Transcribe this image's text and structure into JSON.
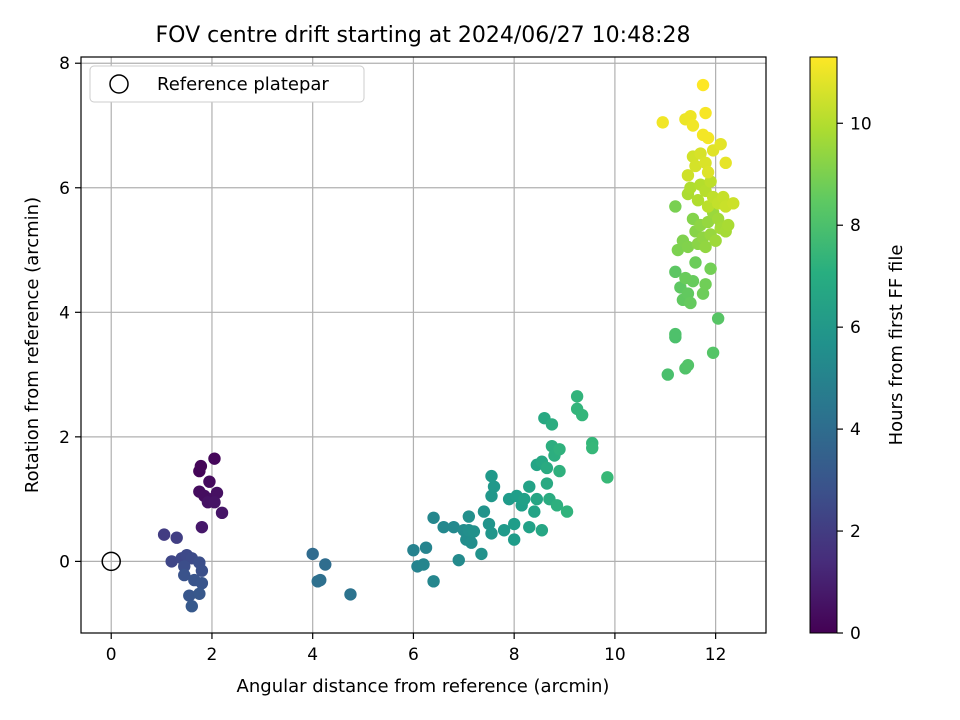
{
  "chart_data": {
    "type": "scatter",
    "title": "FOV centre drift starting at 2024/06/27 10:48:28",
    "xlabel": "Angular distance from reference (arcmin)",
    "ylabel": "Rotation from reference (arcmin)",
    "xlim": [
      -0.6,
      13.0
    ],
    "ylim": [
      -1.15,
      8.1
    ],
    "xticks": [
      0,
      2,
      4,
      6,
      8,
      10,
      12
    ],
    "yticks": [
      0,
      2,
      4,
      6,
      8
    ],
    "grid": true,
    "legend": {
      "position": "top-left",
      "entries": [
        "Reference platepar"
      ]
    },
    "reference_point": {
      "x": 0,
      "y": 0
    },
    "colorbar": {
      "label": "Hours from first FF file",
      "colormap": "viridis",
      "range": [
        0,
        11.3
      ],
      "ticks": [
        0,
        2,
        4,
        6,
        8,
        10
      ]
    },
    "points": [
      {
        "x": 1.75,
        "y": 1.45,
        "t": 0.1
      },
      {
        "x": 1.78,
        "y": 1.53,
        "t": 0.15
      },
      {
        "x": 2.05,
        "y": 1.65,
        "t": 0.2
      },
      {
        "x": 1.95,
        "y": 1.28,
        "t": 0.3
      },
      {
        "x": 1.75,
        "y": 1.12,
        "t": 0.35
      },
      {
        "x": 1.85,
        "y": 1.05,
        "t": 0.4
      },
      {
        "x": 2.0,
        "y": 1.0,
        "t": 0.45
      },
      {
        "x": 2.1,
        "y": 1.1,
        "t": 0.5
      },
      {
        "x": 1.92,
        "y": 0.95,
        "t": 0.55
      },
      {
        "x": 2.05,
        "y": 0.95,
        "t": 0.6
      },
      {
        "x": 2.2,
        "y": 0.78,
        "t": 0.65
      },
      {
        "x": 1.8,
        "y": 0.55,
        "t": 0.75
      },
      {
        "x": 1.05,
        "y": 0.43,
        "t": 2.0
      },
      {
        "x": 1.3,
        "y": 0.38,
        "t": 2.1
      },
      {
        "x": 1.2,
        "y": 0.0,
        "t": 2.4
      },
      {
        "x": 1.4,
        "y": 0.05,
        "t": 2.45
      },
      {
        "x": 1.5,
        "y": 0.1,
        "t": 2.5
      },
      {
        "x": 1.6,
        "y": 0.05,
        "t": 2.6
      },
      {
        "x": 1.45,
        "y": -0.08,
        "t": 2.7
      },
      {
        "x": 1.75,
        "y": -0.02,
        "t": 2.75
      },
      {
        "x": 1.8,
        "y": -0.15,
        "t": 2.8
      },
      {
        "x": 1.45,
        "y": -0.22,
        "t": 2.9
      },
      {
        "x": 1.65,
        "y": -0.3,
        "t": 2.95
      },
      {
        "x": 1.8,
        "y": -0.35,
        "t": 3.0
      },
      {
        "x": 1.55,
        "y": -0.55,
        "t": 3.05
      },
      {
        "x": 1.75,
        "y": -0.52,
        "t": 3.1
      },
      {
        "x": 1.6,
        "y": -0.72,
        "t": 3.15
      },
      {
        "x": 4.0,
        "y": 0.12,
        "t": 3.9
      },
      {
        "x": 4.25,
        "y": -0.05,
        "t": 4.0
      },
      {
        "x": 4.15,
        "y": -0.3,
        "t": 4.1
      },
      {
        "x": 4.1,
        "y": -0.32,
        "t": 4.15
      },
      {
        "x": 4.75,
        "y": -0.53,
        "t": 4.3
      },
      {
        "x": 6.0,
        "y": 0.18,
        "t": 5.0
      },
      {
        "x": 6.08,
        "y": -0.08,
        "t": 5.05
      },
      {
        "x": 6.25,
        "y": 0.22,
        "t": 5.1
      },
      {
        "x": 6.2,
        "y": -0.05,
        "t": 5.15
      },
      {
        "x": 6.4,
        "y": -0.32,
        "t": 5.2
      },
      {
        "x": 6.4,
        "y": 0.7,
        "t": 5.25
      },
      {
        "x": 6.6,
        "y": 0.55,
        "t": 5.3
      },
      {
        "x": 6.8,
        "y": 0.55,
        "t": 5.35
      },
      {
        "x": 6.9,
        "y": 0.02,
        "t": 5.4
      },
      {
        "x": 7.0,
        "y": 0.5,
        "t": 5.45
      },
      {
        "x": 7.05,
        "y": 0.35,
        "t": 5.5
      },
      {
        "x": 7.15,
        "y": 0.3,
        "t": 5.55
      },
      {
        "x": 7.1,
        "y": 0.5,
        "t": 5.6
      },
      {
        "x": 7.1,
        "y": 0.72,
        "t": 5.65
      },
      {
        "x": 7.2,
        "y": 0.48,
        "t": 5.7
      },
      {
        "x": 7.35,
        "y": 0.12,
        "t": 5.75
      },
      {
        "x": 7.4,
        "y": 0.8,
        "t": 5.8
      },
      {
        "x": 7.5,
        "y": 0.6,
        "t": 5.85
      },
      {
        "x": 7.55,
        "y": 0.45,
        "t": 5.9
      },
      {
        "x": 7.55,
        "y": 1.05,
        "t": 5.95
      },
      {
        "x": 7.6,
        "y": 1.2,
        "t": 6.0
      },
      {
        "x": 7.55,
        "y": 1.37,
        "t": 6.05
      },
      {
        "x": 7.8,
        "y": 0.5,
        "t": 6.1
      },
      {
        "x": 7.9,
        "y": 1.0,
        "t": 6.15
      },
      {
        "x": 8.0,
        "y": 0.35,
        "t": 6.2
      },
      {
        "x": 8.0,
        "y": 0.6,
        "t": 6.25
      },
      {
        "x": 8.05,
        "y": 1.05,
        "t": 6.3
      },
      {
        "x": 8.15,
        "y": 0.9,
        "t": 6.35
      },
      {
        "x": 8.2,
        "y": 1.0,
        "t": 6.4
      },
      {
        "x": 8.3,
        "y": 0.55,
        "t": 6.45
      },
      {
        "x": 8.3,
        "y": 1.2,
        "t": 6.5
      },
      {
        "x": 8.4,
        "y": 0.8,
        "t": 6.55
      },
      {
        "x": 8.45,
        "y": 1.55,
        "t": 6.6
      },
      {
        "x": 8.45,
        "y": 1.0,
        "t": 6.65
      },
      {
        "x": 8.55,
        "y": 0.5,
        "t": 6.7
      },
      {
        "x": 8.55,
        "y": 1.6,
        "t": 6.75
      },
      {
        "x": 8.6,
        "y": 2.3,
        "t": 6.8
      },
      {
        "x": 8.65,
        "y": 1.25,
        "t": 6.85
      },
      {
        "x": 8.65,
        "y": 1.5,
        "t": 6.9
      },
      {
        "x": 8.7,
        "y": 1.0,
        "t": 6.95
      },
      {
        "x": 8.75,
        "y": 2.2,
        "t": 7.0
      },
      {
        "x": 8.75,
        "y": 1.85,
        "t": 7.05
      },
      {
        "x": 8.8,
        "y": 1.7,
        "t": 7.1
      },
      {
        "x": 8.85,
        "y": 0.9,
        "t": 7.15
      },
      {
        "x": 8.9,
        "y": 1.45,
        "t": 7.2
      },
      {
        "x": 8.9,
        "y": 1.8,
        "t": 7.25
      },
      {
        "x": 9.05,
        "y": 0.8,
        "t": 7.3
      },
      {
        "x": 9.25,
        "y": 2.65,
        "t": 7.35
      },
      {
        "x": 9.25,
        "y": 2.45,
        "t": 7.4
      },
      {
        "x": 9.35,
        "y": 2.35,
        "t": 7.45
      },
      {
        "x": 9.55,
        "y": 1.9,
        "t": 7.5
      },
      {
        "x": 9.55,
        "y": 1.82,
        "t": 7.55
      },
      {
        "x": 9.85,
        "y": 1.35,
        "t": 7.6
      },
      {
        "x": 11.05,
        "y": 3.0,
        "t": 8.0
      },
      {
        "x": 11.2,
        "y": 3.6,
        "t": 8.05
      },
      {
        "x": 11.2,
        "y": 3.65,
        "t": 8.1
      },
      {
        "x": 11.4,
        "y": 3.1,
        "t": 8.15
      },
      {
        "x": 11.45,
        "y": 3.15,
        "t": 8.2
      },
      {
        "x": 11.95,
        "y": 3.35,
        "t": 8.25
      },
      {
        "x": 12.05,
        "y": 3.9,
        "t": 8.3
      },
      {
        "x": 11.2,
        "y": 4.65,
        "t": 8.4
      },
      {
        "x": 11.3,
        "y": 4.4,
        "t": 8.45
      },
      {
        "x": 11.35,
        "y": 4.2,
        "t": 8.5
      },
      {
        "x": 11.45,
        "y": 4.3,
        "t": 8.55
      },
      {
        "x": 11.5,
        "y": 4.15,
        "t": 8.6
      },
      {
        "x": 11.55,
        "y": 4.5,
        "t": 8.65
      },
      {
        "x": 11.4,
        "y": 4.55,
        "t": 8.7
      },
      {
        "x": 11.6,
        "y": 4.8,
        "t": 8.75
      },
      {
        "x": 11.75,
        "y": 4.3,
        "t": 8.8
      },
      {
        "x": 11.8,
        "y": 4.45,
        "t": 8.85
      },
      {
        "x": 11.9,
        "y": 4.7,
        "t": 8.9
      },
      {
        "x": 11.2,
        "y": 5.7,
        "t": 9.0
      },
      {
        "x": 11.25,
        "y": 5.0,
        "t": 9.05
      },
      {
        "x": 11.35,
        "y": 5.15,
        "t": 9.1
      },
      {
        "x": 11.45,
        "y": 5.05,
        "t": 9.15
      },
      {
        "x": 11.55,
        "y": 5.5,
        "t": 9.2
      },
      {
        "x": 11.6,
        "y": 5.3,
        "t": 9.25
      },
      {
        "x": 11.65,
        "y": 5.1,
        "t": 9.3
      },
      {
        "x": 11.7,
        "y": 5.4,
        "t": 9.35
      },
      {
        "x": 11.75,
        "y": 5.2,
        "t": 9.4
      },
      {
        "x": 11.8,
        "y": 5.05,
        "t": 9.45
      },
      {
        "x": 11.85,
        "y": 5.45,
        "t": 9.5
      },
      {
        "x": 11.9,
        "y": 5.25,
        "t": 9.55
      },
      {
        "x": 11.95,
        "y": 5.6,
        "t": 9.6
      },
      {
        "x": 12.0,
        "y": 5.15,
        "t": 9.65
      },
      {
        "x": 12.05,
        "y": 5.5,
        "t": 9.7
      },
      {
        "x": 12.1,
        "y": 5.35,
        "t": 9.75
      },
      {
        "x": 12.2,
        "y": 5.3,
        "t": 9.8
      },
      {
        "x": 12.25,
        "y": 5.4,
        "t": 9.85
      },
      {
        "x": 11.45,
        "y": 5.9,
        "t": 9.9
      },
      {
        "x": 11.5,
        "y": 6.0,
        "t": 9.95
      },
      {
        "x": 11.65,
        "y": 5.8,
        "t": 10.0
      },
      {
        "x": 11.7,
        "y": 6.05,
        "t": 10.05
      },
      {
        "x": 11.8,
        "y": 5.95,
        "t": 10.1
      },
      {
        "x": 11.85,
        "y": 5.7,
        "t": 10.15
      },
      {
        "x": 11.9,
        "y": 6.1,
        "t": 10.2
      },
      {
        "x": 11.95,
        "y": 5.85,
        "t": 10.25
      },
      {
        "x": 12.05,
        "y": 5.75,
        "t": 10.3
      },
      {
        "x": 12.15,
        "y": 5.85,
        "t": 10.35
      },
      {
        "x": 12.2,
        "y": 5.7,
        "t": 10.4
      },
      {
        "x": 12.35,
        "y": 5.75,
        "t": 10.45
      },
      {
        "x": 11.45,
        "y": 6.2,
        "t": 10.5
      },
      {
        "x": 11.55,
        "y": 6.5,
        "t": 10.55
      },
      {
        "x": 11.6,
        "y": 6.35,
        "t": 10.6
      },
      {
        "x": 11.7,
        "y": 6.55,
        "t": 10.65
      },
      {
        "x": 11.8,
        "y": 6.4,
        "t": 10.7
      },
      {
        "x": 11.85,
        "y": 6.25,
        "t": 10.75
      },
      {
        "x": 11.95,
        "y": 6.6,
        "t": 10.8
      },
      {
        "x": 12.1,
        "y": 6.7,
        "t": 10.85
      },
      {
        "x": 12.2,
        "y": 6.4,
        "t": 10.9
      },
      {
        "x": 11.4,
        "y": 7.1,
        "t": 11.0
      },
      {
        "x": 11.5,
        "y": 7.15,
        "t": 11.05
      },
      {
        "x": 11.55,
        "y": 7.0,
        "t": 11.1
      },
      {
        "x": 11.75,
        "y": 6.85,
        "t": 11.15
      },
      {
        "x": 11.8,
        "y": 7.2,
        "t": 11.2
      },
      {
        "x": 10.95,
        "y": 7.05,
        "t": 11.1
      },
      {
        "x": 11.75,
        "y": 7.65,
        "t": 11.3
      },
      {
        "x": 11.85,
        "y": 6.8,
        "t": 11.15
      }
    ]
  }
}
